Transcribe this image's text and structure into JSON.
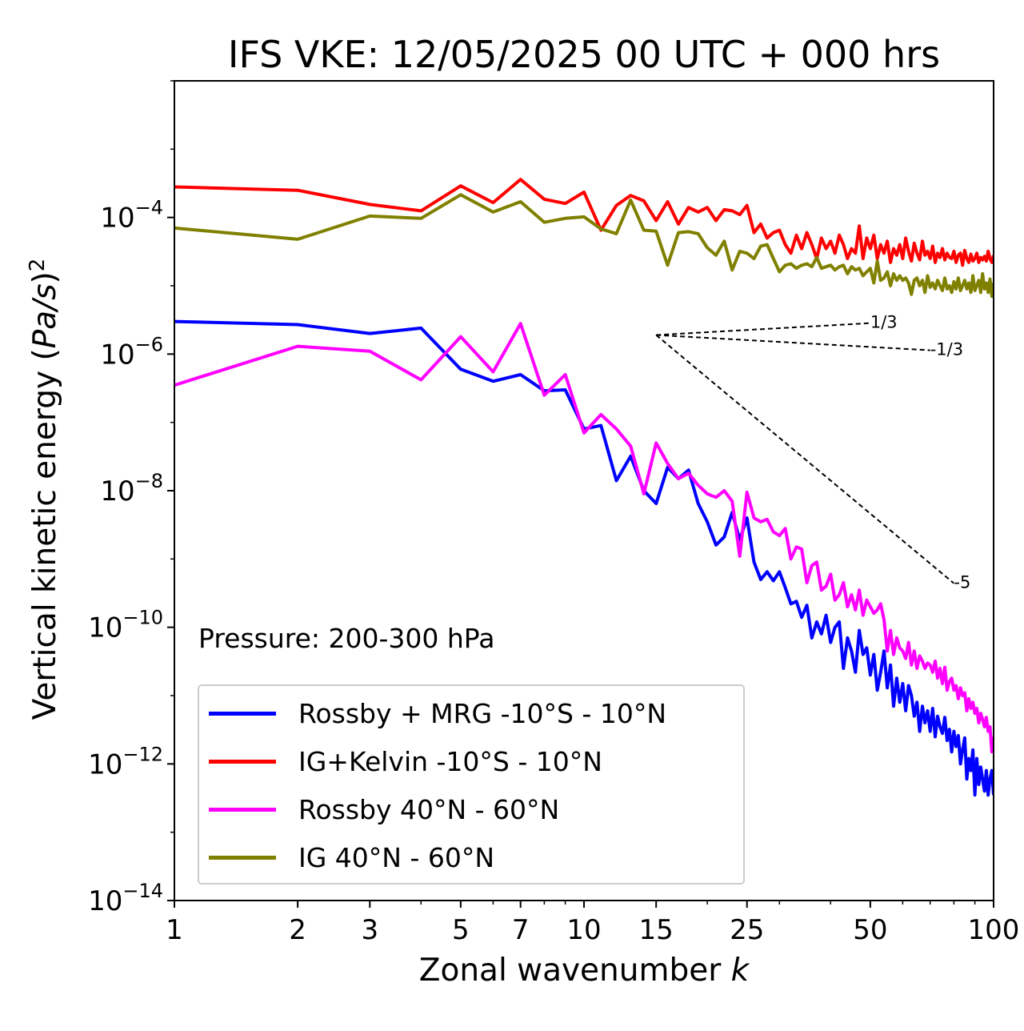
{
  "title": "IFS VKE: 12/05/2025 00 UTC + 000 hrs",
  "annotation": "Pressure: 200-300 hPa",
  "chart_data": {
    "type": "line",
    "title": "IFS VKE: 12/05/2025 00 UTC + 000 hrs",
    "xlabel": "Zonal wavenumber k",
    "ylabel_text": "Vertical kinetic energy (Pa/s)",
    "ylabel_power": "2",
    "x_scale": "log",
    "y_scale": "log",
    "xlim": [
      1,
      100
    ],
    "ylim": [
      1e-14,
      0.01
    ],
    "x_ticks": [
      1,
      2,
      3,
      5,
      7,
      10,
      15,
      25,
      50,
      100
    ],
    "y_tick_exponents": [
      "-4",
      "-6",
      "-8",
      "-10",
      "-12",
      "-14"
    ],
    "y_tick_values": [
      0.0001,
      1e-06,
      1e-08,
      1e-10,
      1e-12,
      1e-14
    ],
    "grid": false,
    "legend_position": "lower-left",
    "series": [
      {
        "name": "Rossby + MRG -10°S - 10°N",
        "color": "#0000ff",
        "x": [
          1,
          2,
          3,
          4,
          5,
          6,
          7,
          8,
          9,
          10,
          11,
          12,
          13,
          14,
          15,
          16,
          17,
          18,
          19,
          20,
          21,
          22,
          23,
          24,
          25,
          26,
          27,
          28,
          29,
          30,
          31,
          32,
          33,
          34,
          35,
          36,
          37,
          38,
          39,
          40,
          41,
          42,
          43,
          44,
          45,
          46,
          47,
          48,
          49,
          50,
          51,
          52,
          53,
          54,
          55,
          56,
          57,
          58,
          59,
          60,
          61,
          62,
          63,
          64,
          65,
          66,
          67,
          68,
          69,
          70,
          71,
          72,
          73,
          74,
          75,
          76,
          77,
          78,
          79,
          80,
          81,
          82,
          83,
          84,
          85,
          86,
          87,
          88,
          89,
          90,
          91,
          92,
          93,
          94,
          95,
          96,
          97,
          98,
          99,
          100
        ],
        "y": [
          3e-06,
          2.7e-06,
          2e-06,
          2.4e-06,
          6e-07,
          4e-07,
          5e-07,
          2.9e-07,
          3e-07,
          8e-08,
          9e-08,
          1.4e-08,
          3.2e-08,
          1e-08,
          6.5e-09,
          2.2e-08,
          1.5e-08,
          2e-08,
          6.5e-09,
          3.5e-09,
          1.6e-09,
          2.1e-09,
          4.8e-09,
          1.9e-09,
          4e-09,
          9e-10,
          5e-10,
          6.5e-10,
          4.8e-10,
          6.5e-10,
          3.8e-10,
          2.2e-10,
          2.4e-10,
          1.4e-10,
          2.1e-10,
          7e-11,
          1.2e-10,
          8e-11,
          1.5e-10,
          6e-11,
          1e-10,
          1.2e-10,
          2.5e-11,
          7e-11,
          4.5e-11,
          2.2e-11,
          9e-11,
          4e-11,
          5e-11,
          2e-11,
          4e-11,
          1.2e-11,
          2.2e-11,
          4.5e-11,
          1.3e-11,
          2.8e-11,
          7e-12,
          1.8e-11,
          8e-12,
          1.5e-11,
          6e-12,
          1.4e-11,
          1e-11,
          5e-12,
          8e-12,
          3e-12,
          7e-12,
          4e-12,
          6e-12,
          3e-12,
          6.5e-12,
          2.5e-12,
          5e-12,
          3.5e-12,
          2.8e-12,
          4.8e-12,
          2.2e-12,
          3.2e-12,
          1.5e-12,
          3e-12,
          1.8e-12,
          2.6e-12,
          1e-12,
          1.6e-12,
          2.4e-12,
          6e-13,
          1.2e-12,
          8e-13,
          1.6e-12,
          3.5e-13,
          1.2e-12,
          5e-13,
          9e-13,
          6e-13,
          4e-13,
          8e-13,
          3.5e-13,
          6e-13,
          8e-13,
          3.5e-13
        ]
      },
      {
        "name": "IG+Kelvin -10°S - 10°N",
        "color": "#ff0000",
        "x": [
          1,
          2,
          3,
          4,
          5,
          6,
          7,
          8,
          9,
          10,
          11,
          12,
          13,
          14,
          15,
          16,
          17,
          18,
          19,
          20,
          21,
          22,
          23,
          24,
          25,
          26,
          27,
          28,
          29,
          30,
          31,
          32,
          33,
          34,
          35,
          36,
          37,
          38,
          39,
          40,
          41,
          42,
          43,
          44,
          45,
          46,
          47,
          48,
          49,
          50,
          51,
          52,
          53,
          54,
          55,
          56,
          57,
          58,
          59,
          60,
          61,
          62,
          63,
          64,
          65,
          66,
          67,
          68,
          69,
          70,
          71,
          72,
          73,
          74,
          75,
          76,
          77,
          78,
          79,
          80,
          81,
          82,
          83,
          84,
          85,
          86,
          87,
          88,
          89,
          90,
          91,
          92,
          93,
          94,
          95,
          96,
          97,
          98,
          99,
          100
        ],
        "y": [
          0.00028,
          0.00025,
          0.000155,
          0.000125,
          0.00029,
          0.000165,
          0.00036,
          0.000185,
          0.00016,
          0.000235,
          6.5e-05,
          0.00015,
          0.00021,
          0.000175,
          9e-05,
          0.00017,
          8e-05,
          0.00014,
          0.00012,
          0.00014,
          9e-05,
          0.00013,
          0.000125,
          0.00011,
          0.00015,
          6e-05,
          8e-05,
          5e-05,
          6e-05,
          6.5e-05,
          4e-05,
          3e-05,
          5.5e-05,
          3.5e-05,
          6e-05,
          4e-05,
          2.5e-05,
          5e-05,
          3.5e-05,
          4.5e-05,
          3e-05,
          5.5e-05,
          4e-05,
          2.5e-05,
          3.5e-05,
          3e-05,
          7.5e-05,
          2.5e-05,
          5e-05,
          3.5e-05,
          5.5e-05,
          2.5e-05,
          4e-05,
          3e-05,
          4.5e-05,
          2.2e-05,
          3.5e-05,
          2.8e-05,
          4e-05,
          2.5e-05,
          5e-05,
          3.2e-05,
          2.3e-05,
          4.2e-05,
          3e-05,
          2.4e-05,
          4.5e-05,
          2.8e-05,
          3.2e-05,
          2.5e-05,
          3.8e-05,
          2.2e-05,
          3e-05,
          2.6e-05,
          3.5e-05,
          2.4e-05,
          3e-05,
          2.6e-05,
          2.5e-05,
          3.2e-05,
          2.2e-05,
          2.8e-05,
          3e-05,
          2e-05,
          3.3e-05,
          2.5e-05,
          2.2e-05,
          2.9e-05,
          2.3e-05,
          2.5e-05,
          3e-05,
          2.2e-05,
          2.6e-05,
          2.4e-05,
          2.7e-05,
          2.3e-05,
          3.2e-05,
          2.5e-05,
          2.2e-05,
          2.8e-05
        ]
      },
      {
        "name": "Rossby 40°N - 60°N",
        "color": "#ff00ff",
        "x": [
          1,
          2,
          3,
          4,
          5,
          6,
          7,
          8,
          9,
          10,
          11,
          12,
          13,
          14,
          15,
          16,
          17,
          18,
          19,
          20,
          21,
          22,
          23,
          24,
          25,
          26,
          27,
          28,
          29,
          30,
          31,
          32,
          33,
          34,
          35,
          36,
          37,
          38,
          39,
          40,
          41,
          42,
          43,
          44,
          45,
          46,
          47,
          48,
          49,
          50,
          51,
          52,
          53,
          54,
          55,
          56,
          57,
          58,
          59,
          60,
          61,
          62,
          63,
          64,
          65,
          66,
          67,
          68,
          69,
          70,
          71,
          72,
          73,
          74,
          75,
          76,
          77,
          78,
          79,
          80,
          81,
          82,
          83,
          84,
          85,
          86,
          87,
          88,
          89,
          90,
          91,
          92,
          93,
          94,
          95,
          96,
          97,
          98,
          99,
          100
        ],
        "y": [
          3.5e-07,
          1.3e-06,
          1.1e-06,
          4.2e-07,
          1.8e-06,
          5.5e-07,
          2.8e-06,
          2.5e-07,
          5e-07,
          7e-08,
          1.3e-07,
          8e-08,
          4.5e-08,
          9e-09,
          5e-08,
          2.5e-08,
          1.5e-08,
          1.8e-08,
          1.2e-08,
          9e-09,
          8e-09,
          1e-08,
          7e-09,
          1.1e-09,
          9.5e-09,
          4e-09,
          3.5e-09,
          3.8e-09,
          2.5e-09,
          2.2e-09,
          2.8e-09,
          1e-09,
          1.5e-09,
          1.4e-09,
          4.5e-10,
          8e-10,
          9e-10,
          3.5e-10,
          4e-10,
          6e-10,
          2.5e-10,
          3e-10,
          4.5e-10,
          2e-10,
          3e-10,
          1.8e-10,
          3.5e-10,
          1.5e-10,
          2.5e-10,
          2e-10,
          1.6e-10,
          1.8e-10,
          2.2e-10,
          1.3e-10,
          4.5e-11,
          9e-11,
          4e-11,
          7e-11,
          5e-11,
          4.5e-11,
          3.5e-11,
          6e-11,
          2.8e-11,
          4.5e-11,
          2.5e-11,
          3.8e-11,
          3.2e-11,
          2.5e-11,
          3e-11,
          2.8e-11,
          2.2e-11,
          3.2e-11,
          1.8e-11,
          2.5e-11,
          1.5e-11,
          2.6e-11,
          1.2e-11,
          1.6e-11,
          1.8e-11,
          1.2e-11,
          1.4e-11,
          9e-12,
          1.3e-11,
          1e-11,
          1.1e-11,
          6e-12,
          9e-12,
          6.5e-12,
          8e-12,
          5.5e-12,
          6.5e-12,
          4e-12,
          5.5e-12,
          4.5e-12,
          3.5e-12,
          4.8e-12,
          3e-12,
          3.5e-12,
          1.5e-12,
          2.5e-12
        ]
      },
      {
        "name": "IG 40°N - 60°N",
        "color": "#808000",
        "x": [
          1,
          2,
          3,
          4,
          5,
          6,
          7,
          8,
          9,
          10,
          11,
          12,
          13,
          14,
          15,
          16,
          17,
          18,
          19,
          20,
          21,
          22,
          23,
          24,
          25,
          26,
          27,
          28,
          29,
          30,
          31,
          32,
          33,
          34,
          35,
          36,
          37,
          38,
          39,
          40,
          41,
          42,
          43,
          44,
          45,
          46,
          47,
          48,
          49,
          50,
          51,
          52,
          53,
          54,
          55,
          56,
          57,
          58,
          59,
          60,
          61,
          62,
          63,
          64,
          65,
          66,
          67,
          68,
          69,
          70,
          71,
          72,
          73,
          74,
          75,
          76,
          77,
          78,
          79,
          80,
          81,
          82,
          83,
          84,
          85,
          86,
          87,
          88,
          89,
          90,
          91,
          92,
          93,
          94,
          95,
          96,
          97,
          98,
          99,
          100
        ],
        "y": [
          7e-05,
          4.8e-05,
          0.000105,
          9.7e-05,
          0.000215,
          0.00012,
          0.00017,
          8.5e-05,
          9.7e-05,
          0.000102,
          6.8e-05,
          5.8e-05,
          0.00018,
          6.5e-05,
          6.3e-05,
          2e-05,
          6e-05,
          6.2e-05,
          5.8e-05,
          3.6e-05,
          2.8e-05,
          4.5e-05,
          1.7e-05,
          3.2e-05,
          3e-05,
          2.5e-05,
          3.8e-05,
          4e-05,
          2.5e-05,
          1.6e-05,
          2e-05,
          2.1e-05,
          1.8e-05,
          2e-05,
          2.1e-05,
          1.9e-05,
          2.6e-05,
          1.8e-05,
          1.9e-05,
          2e-05,
          1.7e-05,
          1.9e-05,
          2e-05,
          1.5e-05,
          1.9e-05,
          1.7e-05,
          1.8e-05,
          1.4e-05,
          1.6e-05,
          1.8e-05,
          1.1e-05,
          2.3e-05,
          1.2e-05,
          1.3e-05,
          1.6e-05,
          1e-05,
          1.5e-05,
          1.2e-05,
          1.4e-05,
          1.2e-05,
          1.3e-05,
          1.1e-05,
          7.5e-06,
          1.2e-05,
          1.3e-05,
          1e-05,
          1.2e-05,
          8e-06,
          1.4e-05,
          9.5e-06,
          1.1e-05,
          9e-06,
          1.2e-05,
          1e-05,
          8.5e-06,
          1.3e-05,
          9e-06,
          1e-05,
          8e-06,
          1.15e-05,
          9e-06,
          1.3e-05,
          8.5e-06,
          1e-05,
          1.2e-05,
          9e-06,
          1.1e-05,
          8e-06,
          1.4e-05,
          8.5e-06,
          1e-05,
          1.2e-05,
          8e-06,
          1.5e-05,
          9e-06,
          1.1e-05,
          8e-06,
          1.25e-05,
          7e-06,
          1.1e-05
        ]
      }
    ],
    "reference_lines": [
      {
        "label": "1/3",
        "slope": 0.3333,
        "x0": 15,
        "y0": 1.9e-06,
        "x1": 50
      },
      {
        "label": "-1/3",
        "slope": -0.3333,
        "x0": 15,
        "y0": 1.9e-06,
        "x1": 70
      },
      {
        "label": "-5",
        "slope": -5,
        "x0": 15,
        "y0": 1.9e-06,
        "x1": 80
      }
    ]
  }
}
